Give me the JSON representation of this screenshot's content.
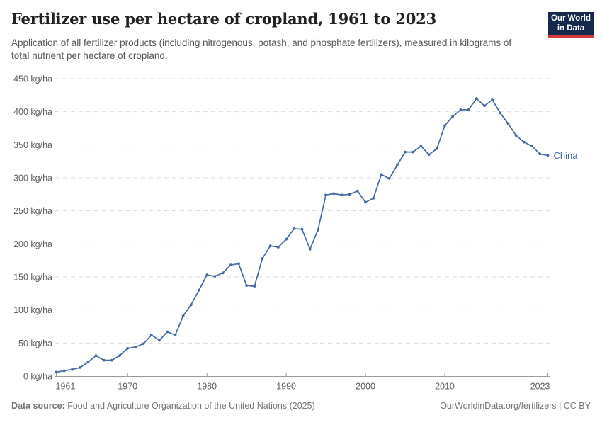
{
  "header": {
    "title": "Fertilizer use per hectare of cropland, 1961 to 2023",
    "subtitle": "Application of all fertilizer products (including nitrogenous, potash, and phosphate fertilizers), measured in kilograms of total nutrient per hectare of cropland.",
    "logo": {
      "line1": "Our World",
      "line2": "in Data",
      "bg_color": "#16294d",
      "accent_color": "#d6393c"
    }
  },
  "footer": {
    "source_label": "Data source:",
    "source_text": " Food and Agriculture Organization of the United Nations (2025)",
    "link_text": "OurWorldinData.org/fertilizers | CC BY"
  },
  "chart_data": {
    "type": "line",
    "title": "Fertilizer use per hectare of cropland, 1961 to 2023",
    "xlabel": "",
    "ylabel": "kg/ha",
    "xlim": [
      1961,
      2023
    ],
    "ylim": [
      0,
      450
    ],
    "x_ticks": [
      1961,
      1970,
      1980,
      1990,
      2000,
      2010,
      2023
    ],
    "y_ticks": [
      0,
      50,
      100,
      150,
      200,
      250,
      300,
      350,
      400,
      450
    ],
    "y_tick_suffix": " kg/ha",
    "grid": "horizontal-dashed",
    "legend_position": "end-of-line-label",
    "colors": {
      "grid": "#dedede",
      "axis": "#9a9a9a",
      "tick_label": "#5f5f5f",
      "series": "#4569a0"
    },
    "series": [
      {
        "name": "China",
        "color": "#4569a0",
        "x": [
          1961,
          1962,
          1963,
          1964,
          1965,
          1966,
          1967,
          1968,
          1969,
          1970,
          1971,
          1972,
          1973,
          1974,
          1975,
          1976,
          1977,
          1978,
          1979,
          1980,
          1981,
          1982,
          1983,
          1984,
          1985,
          1986,
          1987,
          1988,
          1989,
          1990,
          1991,
          1992,
          1993,
          1994,
          1995,
          1996,
          1997,
          1998,
          1999,
          2000,
          2001,
          2002,
          2003,
          2004,
          2005,
          2006,
          2007,
          2008,
          2009,
          2010,
          2011,
          2012,
          2013,
          2014,
          2015,
          2016,
          2017,
          2018,
          2019,
          2020,
          2021,
          2022,
          2023
        ],
        "values": [
          6,
          8,
          10,
          13,
          21,
          31,
          24,
          24,
          31,
          42,
          44,
          49,
          62,
          54,
          67,
          62,
          91,
          108,
          130,
          153,
          151,
          156,
          168,
          170,
          137,
          136,
          178,
          197,
          195,
          207,
          223,
          222,
          192,
          221,
          274,
          276,
          274,
          275,
          280,
          263,
          269,
          305,
          299,
          319,
          339,
          339,
          348,
          335,
          344,
          379,
          393,
          403,
          403,
          420,
          409,
          418,
          398,
          382,
          364,
          354,
          348,
          336,
          334
        ]
      }
    ]
  }
}
